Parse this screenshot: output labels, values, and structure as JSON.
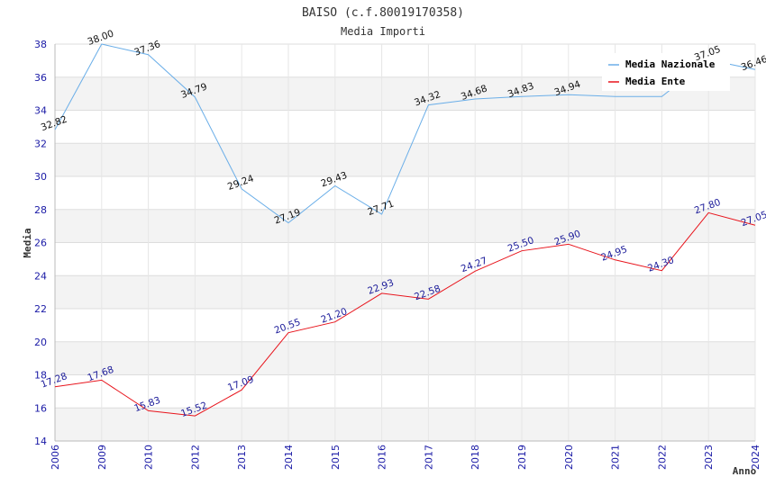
{
  "chart_data": {
    "type": "line",
    "title": "BAISO (c.f.80019170358)",
    "subtitle": "Media Importi",
    "xlabel": "Anno",
    "ylabel": "Media",
    "ylim": [
      14,
      38
    ],
    "yticks": [
      14,
      16,
      18,
      20,
      22,
      24,
      26,
      28,
      30,
      32,
      34,
      36,
      38
    ],
    "categories": [
      "2006",
      "2009",
      "2010",
      "2012",
      "2013",
      "2014",
      "2015",
      "2016",
      "2017",
      "2018",
      "2019",
      "2020",
      "2021",
      "2022",
      "2023",
      "2024"
    ],
    "grid": true,
    "legend_position": "top-right",
    "series": [
      {
        "name": "Media Nazionale",
        "color": "#6aaee8",
        "values": [
          32.82,
          38.0,
          37.36,
          34.79,
          29.24,
          27.19,
          29.43,
          27.71,
          34.32,
          34.68,
          34.83,
          34.94,
          34.83,
          34.83,
          37.05,
          36.46
        ],
        "labels": [
          "32.82",
          "38.00",
          "37.36",
          "34.79",
          "29.24",
          "27.19",
          "29.43",
          "27.71",
          "34.32",
          "34.68",
          "34.83",
          "34.94",
          "",
          "",
          "37.05",
          "36.46"
        ]
      },
      {
        "name": "Media Ente",
        "color": "#e8141c",
        "values": [
          17.28,
          17.68,
          15.83,
          15.52,
          17.09,
          20.55,
          21.2,
          22.93,
          22.58,
          24.27,
          25.5,
          25.9,
          24.95,
          24.3,
          27.8,
          27.05
        ],
        "labels": [
          "17.28",
          "17.68",
          "15.83",
          "15.52",
          "17.09",
          "20.55",
          "21.20",
          "22.93",
          "22.58",
          "24.27",
          "25.50",
          "25.90",
          "24.95",
          "24.30",
          "27.80",
          "27.05"
        ]
      }
    ]
  }
}
